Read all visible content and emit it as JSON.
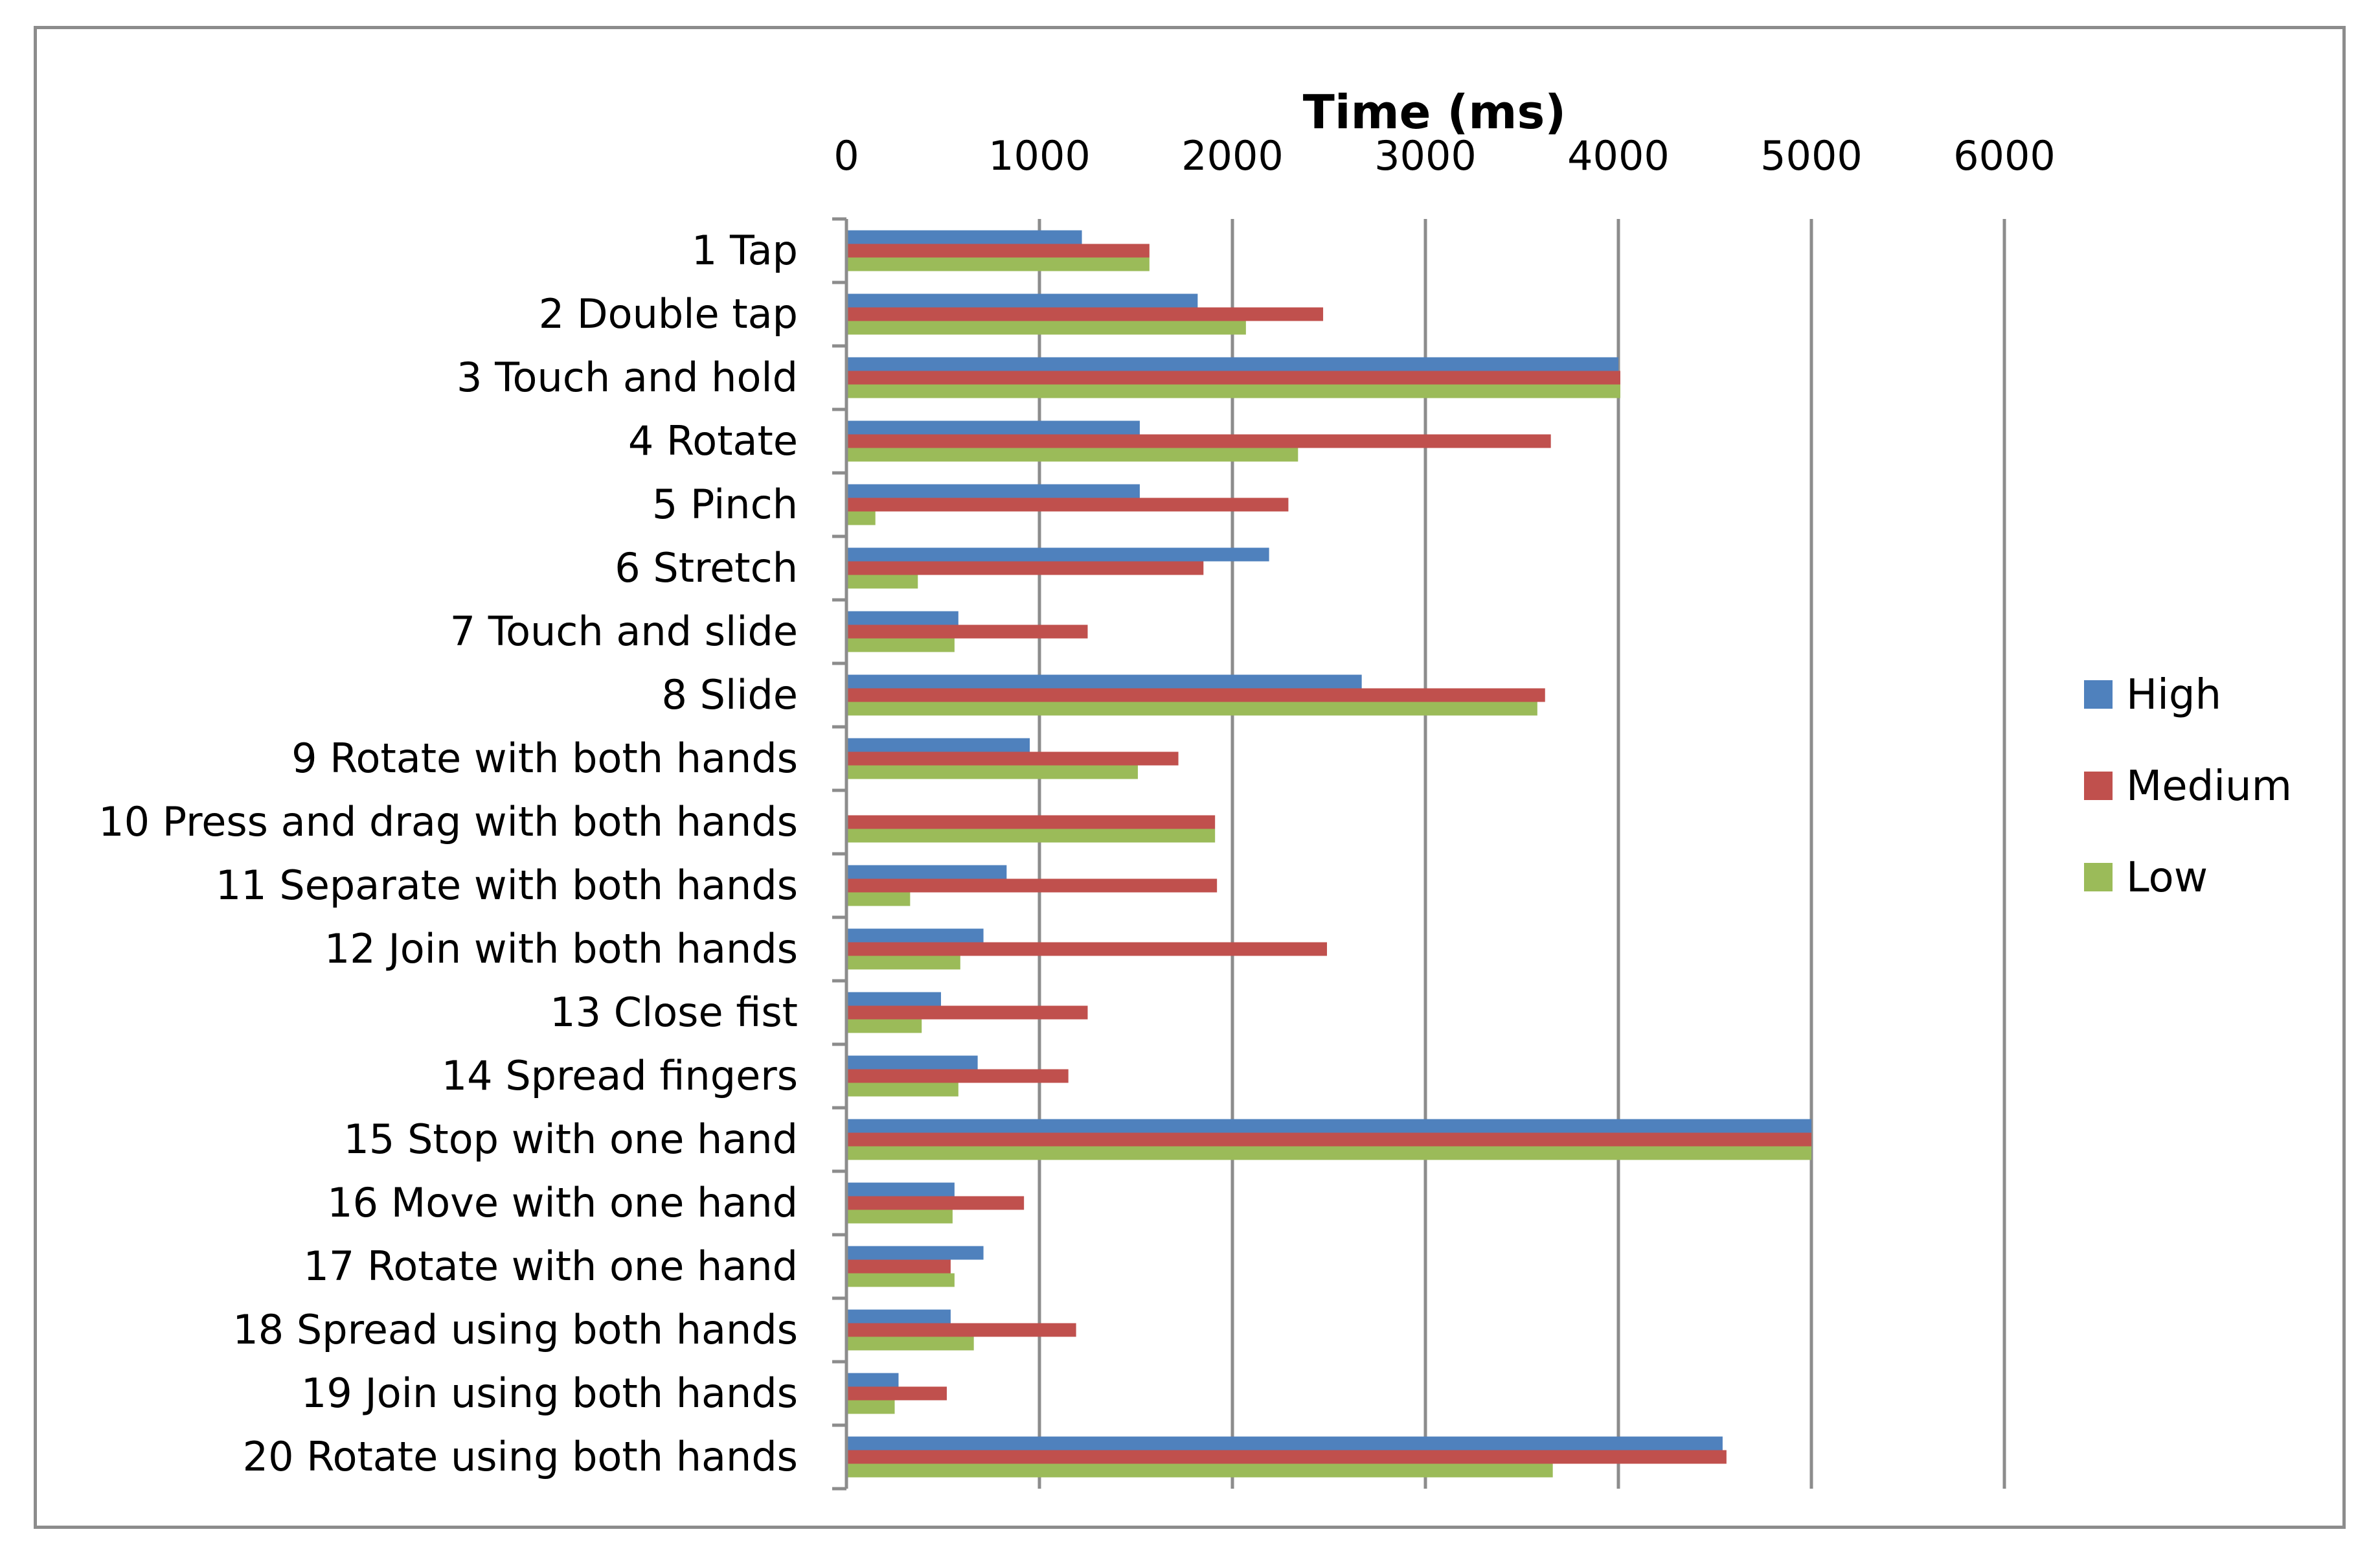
{
  "chart_data": {
    "type": "bar",
    "orientation": "horizontal",
    "title": "Time (ms)",
    "xlabel": "Time (ms)",
    "ylabel": "",
    "xlim": [
      0,
      6000
    ],
    "x_ticks": [
      "0",
      "1000",
      "2000",
      "3000",
      "4000",
      "5000",
      "6000"
    ],
    "grid": "vertical",
    "legend_position": "right",
    "categories": [
      "1 Tap",
      "2 Double tap",
      "3 Touch and hold",
      "4 Rotate",
      "5 Pinch",
      "6 Stretch",
      "7 Touch and slide",
      "8 Slide",
      "9 Rotate with both hands",
      "10 Press and drag with both hands",
      "11 Separate with both hands",
      "12 Join with both hands",
      "13 Close fist",
      "14 Spread fingers",
      "15 Stop with one hand",
      "16 Move with one hand",
      "17 Rotate with one hand",
      "18 Spread using both hands",
      "19 Join using both hands",
      "20 Rotate using both hands"
    ],
    "series": [
      {
        "name": "High",
        "color": "#4f81bd",
        "values": [
          1220,
          1820,
          4000,
          1520,
          1520,
          2190,
          580,
          2670,
          950,
          0,
          830,
          710,
          490,
          680,
          5000,
          560,
          710,
          540,
          270,
          4540
        ]
      },
      {
        "name": "Medium",
        "color": "#c0504d",
        "values": [
          1570,
          2470,
          4010,
          3650,
          2290,
          1850,
          1250,
          3620,
          1720,
          1910,
          1920,
          2490,
          1250,
          1150,
          5000,
          920,
          540,
          1190,
          520,
          4560
        ]
      },
      {
        "name": "Low",
        "color": "#9bbb59",
        "values": [
          1570,
          2070,
          4010,
          2340,
          150,
          370,
          560,
          3580,
          1510,
          1910,
          330,
          590,
          390,
          580,
          5000,
          550,
          560,
          660,
          250,
          3660
        ]
      }
    ]
  }
}
